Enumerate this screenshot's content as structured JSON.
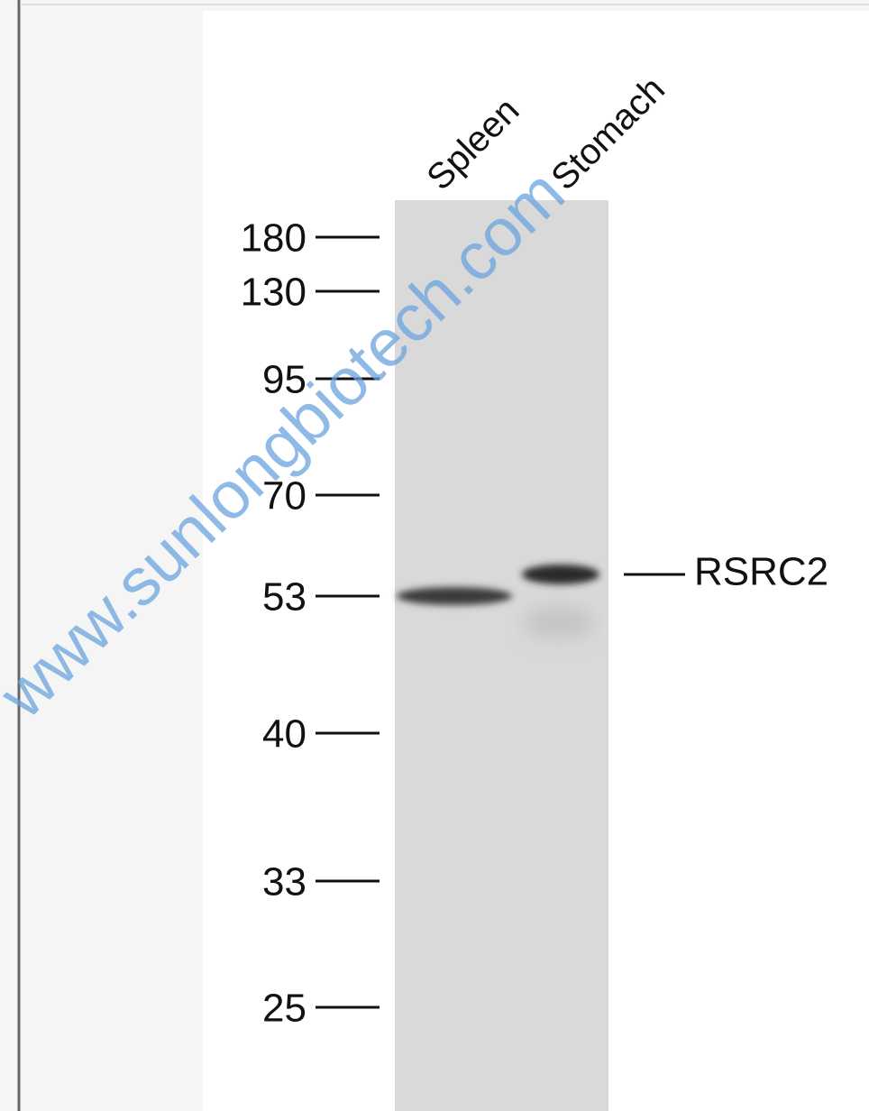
{
  "lanes": [
    "Spleen",
    "Stomach"
  ],
  "markers": [
    "180",
    "130",
    "95",
    "70",
    "53",
    "40",
    "33",
    "25"
  ],
  "target": "RSRC2",
  "watermark": "www.sunlongbiotech.com"
}
